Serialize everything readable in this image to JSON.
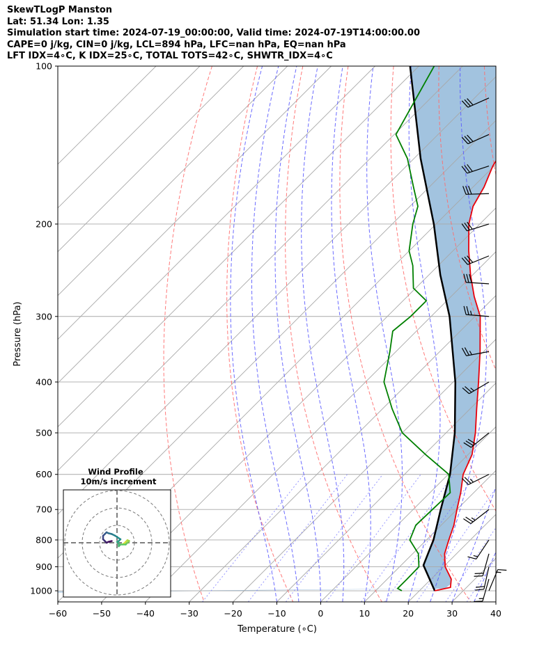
{
  "header": {
    "title": "SkewTLogP Manston",
    "location": "Lat: 51.34   Lon: 1.35",
    "times": "Simulation start time: 2024-07-19_00:00:00, Valid time: 2024-07-19T14:00:00.00",
    "params": "CAPE=0 j/kg, CIN=0 j/kg, LCL=894 hPa, LFC=nan hPa, EQ=nan hPa",
    "indices": "LFT IDX=4∘C, K IDX=25∘C, TOTAL TOTS=42∘C, SHWTR_IDX=4∘C"
  },
  "colors": {
    "temperature": "#e8000b",
    "dewpoint": "#008000",
    "parcel": "#000000",
    "cape_fill": "#7ba9d1",
    "dry_adiabat": "#ff6b6b",
    "moist_adiabat": "#5b5bff",
    "mixing_ratio": "#7a7aff",
    "isotherm": "#a8a8a8"
  },
  "chart_data": {
    "type": "skew-t log-p",
    "xlabel": "Temperature (∘C)",
    "ylabel": "Pressure (hPa)",
    "xlim": [
      -60,
      40
    ],
    "ylim": [
      1050,
      100
    ],
    "x_ticks": [
      "−60",
      "−50",
      "−40",
      "−30",
      "−20",
      "−10",
      "0",
      "10",
      "20",
      "30",
      "40"
    ],
    "y_ticks": [
      "1000",
      "900",
      "800",
      "700",
      "600",
      "500",
      "400",
      "300",
      "200",
      "100"
    ],
    "grid": true,
    "series": [
      {
        "key": "temperature",
        "pressure": [
          1000,
          985,
          950,
          900,
          850,
          800,
          750,
          700,
          650,
          600,
          550,
          500,
          450,
          400,
          350,
          300,
          275,
          250,
          225,
          200,
          185,
          170,
          155,
          145,
          135,
          120,
          100
        ],
        "values": [
          23.5,
          26.3,
          24.6,
          20.4,
          17.3,
          15.1,
          12.9,
          10.0,
          7.0,
          3.4,
          0.9,
          -3.3,
          -8.5,
          -14.2,
          -20.8,
          -28.8,
          -34.7,
          -40.5,
          -46.4,
          -52.5,
          -55.6,
          -57.5,
          -60.3,
          -61.6,
          -65.6,
          -69.8,
          -73.5
        ]
      },
      {
        "key": "dewpoint",
        "pressure": [
          1000,
          990,
          950,
          900,
          850,
          800,
          750,
          700,
          650,
          600,
          550,
          500,
          450,
          400,
          350,
          320,
          300,
          280,
          265,
          240,
          225,
          200,
          185,
          170,
          150,
          135,
          100
        ],
        "values": [
          16.0,
          14.5,
          14.5,
          14.4,
          11.3,
          6.2,
          4.2,
          4.4,
          4.6,
          0.1,
          -9.7,
          -20.0,
          -27.8,
          -35.8,
          -41.4,
          -45.4,
          -44.7,
          -44.7,
          -50.5,
          -55.8,
          -60.0,
          -65.3,
          -68.2,
          -73.6,
          -81.5,
          -89.6,
          -96.5
        ]
      },
      {
        "key": "parcel",
        "pressure": [
          1000,
          894,
          850,
          800,
          700,
          600,
          500,
          400,
          300,
          250,
          200,
          150,
          100
        ],
        "values": [
          23.5,
          15.1,
          13.5,
          11.6,
          6.3,
          0.4,
          -8.0,
          -19.5,
          -35.8,
          -47.4,
          -60.5,
          -78.5,
          -102.0
        ]
      }
    ],
    "wind_barbs": [
      {
        "pressure": 1000,
        "u_kt": -5,
        "v_kt": -12
      },
      {
        "pressure": 950,
        "u_kt": 4,
        "v_kt": 14
      },
      {
        "pressure": 900,
        "u_kt": 4,
        "v_kt": 18
      },
      {
        "pressure": 850,
        "u_kt": 5,
        "v_kt": 18
      },
      {
        "pressure": 800,
        "u_kt": 8,
        "v_kt": 12
      },
      {
        "pressure": 700,
        "u_kt": 18,
        "v_kt": 14
      },
      {
        "pressure": 600,
        "u_kt": 22,
        "v_kt": 11
      },
      {
        "pressure": 500,
        "u_kt": 22,
        "v_kt": 18
      },
      {
        "pressure": 400,
        "u_kt": 22,
        "v_kt": 13
      },
      {
        "pressure": 350,
        "u_kt": 27,
        "v_kt": 5
      },
      {
        "pressure": 300,
        "u_kt": 25,
        "v_kt": -2
      },
      {
        "pressure": 260,
        "u_kt": 31,
        "v_kt": -2
      },
      {
        "pressure": 230,
        "u_kt": 27,
        "v_kt": 11
      },
      {
        "pressure": 200,
        "u_kt": 29,
        "v_kt": 9
      },
      {
        "pressure": 175,
        "u_kt": 31,
        "v_kt": 1
      },
      {
        "pressure": 155,
        "u_kt": 27,
        "v_kt": 9
      },
      {
        "pressure": 135,
        "u_kt": 27,
        "v_kt": 12
      },
      {
        "pressure": 115,
        "u_kt": 27,
        "v_kt": 12
      }
    ],
    "inset": {
      "title": "Wind Profile",
      "subtitle": "10m/s increment",
      "ring_increment_ms": 10,
      "trace_u": [
        3,
        4,
        5,
        6,
        7,
        6,
        5,
        2,
        1,
        1,
        0,
        1,
        2,
        -1,
        -3,
        -5,
        -6,
        -7,
        -8,
        -8,
        -7,
        -6,
        -5,
        -3
      ],
      "trace_v": [
        -1,
        -0.5,
        0.5,
        1.5,
        1,
        0,
        -1,
        -1,
        -2,
        -0.5,
        0.5,
        1,
        2,
        4,
        5,
        5.5,
        6,
        5,
        4,
        2,
        1,
        0,
        0.5,
        1
      ]
    }
  }
}
